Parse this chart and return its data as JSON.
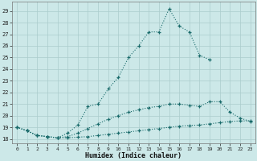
{
  "xlabel": "Humidex (Indice chaleur)",
  "xlim": [
    -0.5,
    23.5
  ],
  "ylim": [
    17.6,
    29.8
  ],
  "yticks": [
    18,
    19,
    20,
    21,
    22,
    23,
    24,
    25,
    26,
    27,
    28,
    29
  ],
  "xticks": [
    0,
    1,
    2,
    3,
    4,
    5,
    6,
    7,
    8,
    9,
    10,
    11,
    12,
    13,
    14,
    15,
    16,
    17,
    18,
    19,
    20,
    21,
    22,
    23
  ],
  "bg_color": "#cce8e8",
  "grid_color": "#aacccc",
  "line_color": "#1a6b6b",
  "line1_x": [
    0,
    1,
    2,
    3,
    4,
    5,
    6,
    7,
    8,
    9,
    10,
    11,
    12,
    13,
    14,
    15,
    16,
    17,
    18,
    19
  ],
  "line1_y": [
    19.0,
    18.7,
    18.3,
    18.2,
    18.1,
    18.5,
    19.2,
    20.8,
    21.0,
    22.3,
    23.3,
    25.0,
    26.0,
    27.2,
    27.2,
    29.2,
    27.7,
    27.2,
    25.2,
    24.8
  ],
  "line2_x": [
    0,
    1,
    2,
    3,
    4,
    5,
    6,
    7,
    8,
    9,
    10,
    11,
    12,
    13,
    14,
    15,
    16,
    17,
    18,
    19,
    20,
    21,
    22,
    23
  ],
  "line2_y": [
    19.0,
    18.7,
    18.3,
    18.2,
    18.1,
    18.2,
    18.5,
    18.9,
    19.3,
    19.7,
    20.0,
    20.3,
    20.5,
    20.7,
    20.8,
    21.0,
    21.0,
    20.9,
    20.8,
    21.2,
    21.2,
    20.3,
    19.8,
    19.5
  ],
  "line3_x": [
    0,
    1,
    2,
    3,
    4,
    5,
    6,
    7,
    8,
    9,
    10,
    11,
    12,
    13,
    14,
    15,
    16,
    17,
    18,
    19,
    20,
    21,
    22,
    23
  ],
  "line3_y": [
    19.0,
    18.7,
    18.3,
    18.2,
    18.1,
    18.1,
    18.15,
    18.2,
    18.3,
    18.4,
    18.5,
    18.6,
    18.7,
    18.8,
    18.9,
    19.0,
    19.1,
    19.15,
    19.2,
    19.3,
    19.4,
    19.5,
    19.55,
    19.55
  ]
}
